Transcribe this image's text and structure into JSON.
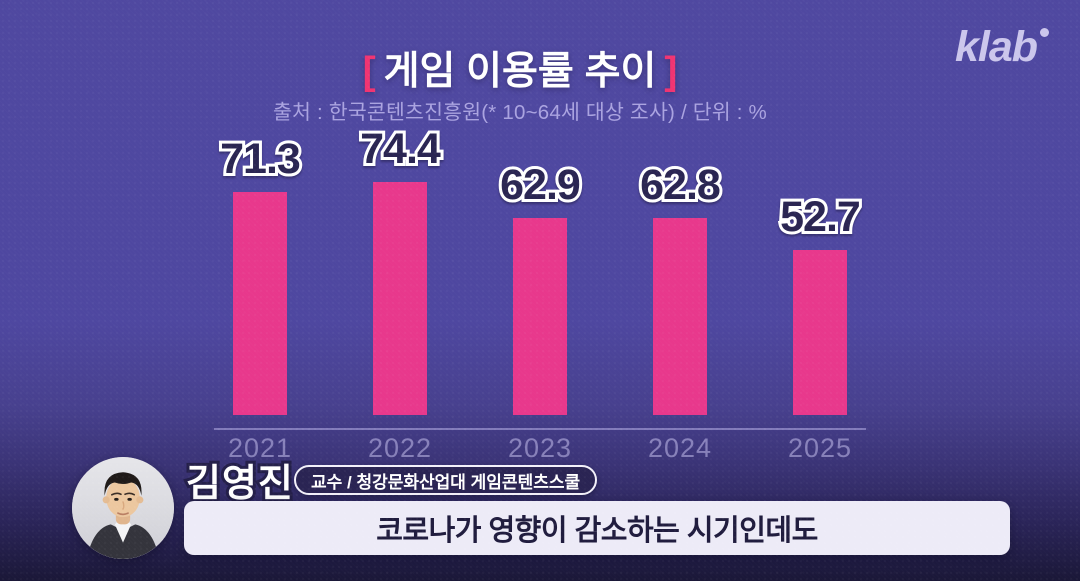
{
  "brand": {
    "logo_text": "klab"
  },
  "header": {
    "bracket_left": "[",
    "title": "게임 이용률 추이",
    "bracket_right": "]",
    "subtitle": "출처 : 한국콘텐츠진흥원(* 10~64세 대상 조사) / 단위 : %"
  },
  "chart_data": {
    "type": "bar",
    "title": "게임 이용률 추이",
    "source_note": "출처 : 한국콘텐츠진흥원(* 10~64세 대상 조사) / 단위 : %",
    "categories": [
      "2021",
      "2022",
      "2023",
      "2024",
      "2025"
    ],
    "values": [
      71.3,
      74.4,
      62.9,
      62.8,
      52.7
    ],
    "unit": "%",
    "ylim": [
      0,
      80
    ],
    "grid": false,
    "legend": "none",
    "value_labels_shown": true,
    "bar_color": "#e8388c"
  },
  "speaker": {
    "name": "김영진",
    "affiliation": "교수 / 청강문화산업대 게임콘텐츠스쿨",
    "avatar": "man-portrait-photo"
  },
  "caption": {
    "text": "코로나가 영향이 감소하는 시기인데도"
  },
  "colors": {
    "background_purple": "#4f48a0",
    "background_bottom": "#1a1737",
    "bar_pink": "#e8388c",
    "bracket_pink": "#f03472",
    "value_label_fill": "#2a2552",
    "value_label_outline": "#ffffff",
    "subtitle_lavender": "#aaa3e0",
    "caption_bg": "#edebf7",
    "caption_text": "#201c3e",
    "pill_bg": "#2a2453",
    "logo_lavender": "#cbc6ec"
  }
}
